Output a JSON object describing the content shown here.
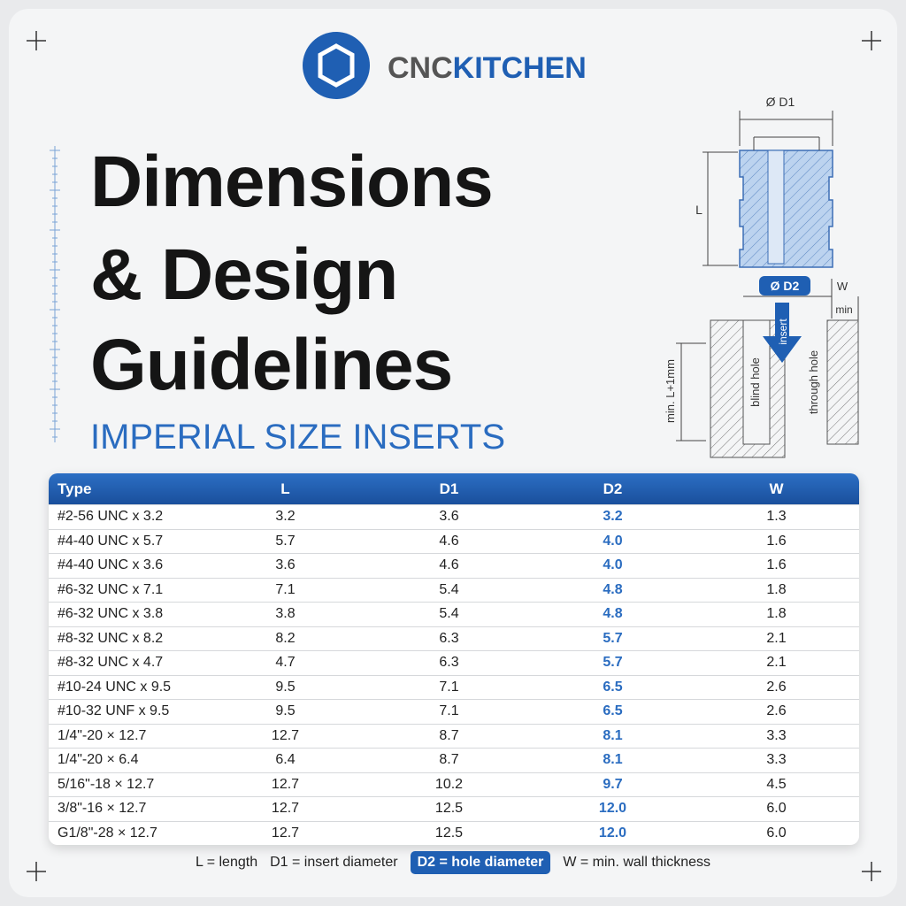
{
  "logo": {
    "left": "CNC",
    "right": "KITCHEN"
  },
  "title": {
    "lines": [
      "Dimensions",
      "& Design",
      "Guidelines"
    ]
  },
  "subtitle": "IMPERIAL SIZE INSERTS",
  "diagram": {
    "d1": "Ø D1",
    "l": "L",
    "d2": "Ø D2",
    "w": "W",
    "min": "min",
    "depth": "min. L+1mm",
    "blind": "blind hole",
    "insert": "insert",
    "through": "through hole"
  },
  "table": {
    "headers": [
      "Type",
      "L",
      "D1",
      "D2",
      "W"
    ],
    "rows": [
      [
        "#2-56 UNC x 3.2",
        "3.2",
        "3.6",
        "3.2",
        "1.3"
      ],
      [
        "#4-40 UNC x 5.7",
        "5.7",
        "4.6",
        "4.0",
        "1.6"
      ],
      [
        "#4-40 UNC x 3.6",
        "3.6",
        "4.6",
        "4.0",
        "1.6"
      ],
      [
        "#6-32 UNC x 7.1",
        "7.1",
        "5.4",
        "4.8",
        "1.8"
      ],
      [
        "#6-32 UNC x 3.8",
        "3.8",
        "5.4",
        "4.8",
        "1.8"
      ],
      [
        "#8-32 UNC x 8.2",
        "8.2",
        "6.3",
        "5.7",
        "2.1"
      ],
      [
        "#8-32 UNC x 4.7",
        "4.7",
        "6.3",
        "5.7",
        "2.1"
      ],
      [
        "#10-24 UNC x 9.5",
        "9.5",
        "7.1",
        "6.5",
        "2.6"
      ],
      [
        "#10-32 UNF x 9.5",
        "9.5",
        "7.1",
        "6.5",
        "2.6"
      ],
      [
        "1/4\"-20 × 12.7",
        "12.7",
        "8.7",
        "8.1",
        "3.3"
      ],
      [
        "1/4\"-20 × 6.4",
        "6.4",
        "8.7",
        "8.1",
        "3.3"
      ],
      [
        "5/16\"-18 × 12.7",
        "12.7",
        "10.2",
        "9.7",
        "4.5"
      ],
      [
        "3/8\"-16 × 12.7",
        "12.7",
        "12.5",
        "12.0",
        "6.0"
      ],
      [
        "G1/8\"-28 × 12.7",
        "12.7",
        "12.5",
        "12.0",
        "6.0"
      ]
    ]
  },
  "legend": {
    "items": [
      "L = length",
      "D1 = insert diameter",
      "D2 = hole diameter",
      "W = min. wall thickness"
    ]
  }
}
